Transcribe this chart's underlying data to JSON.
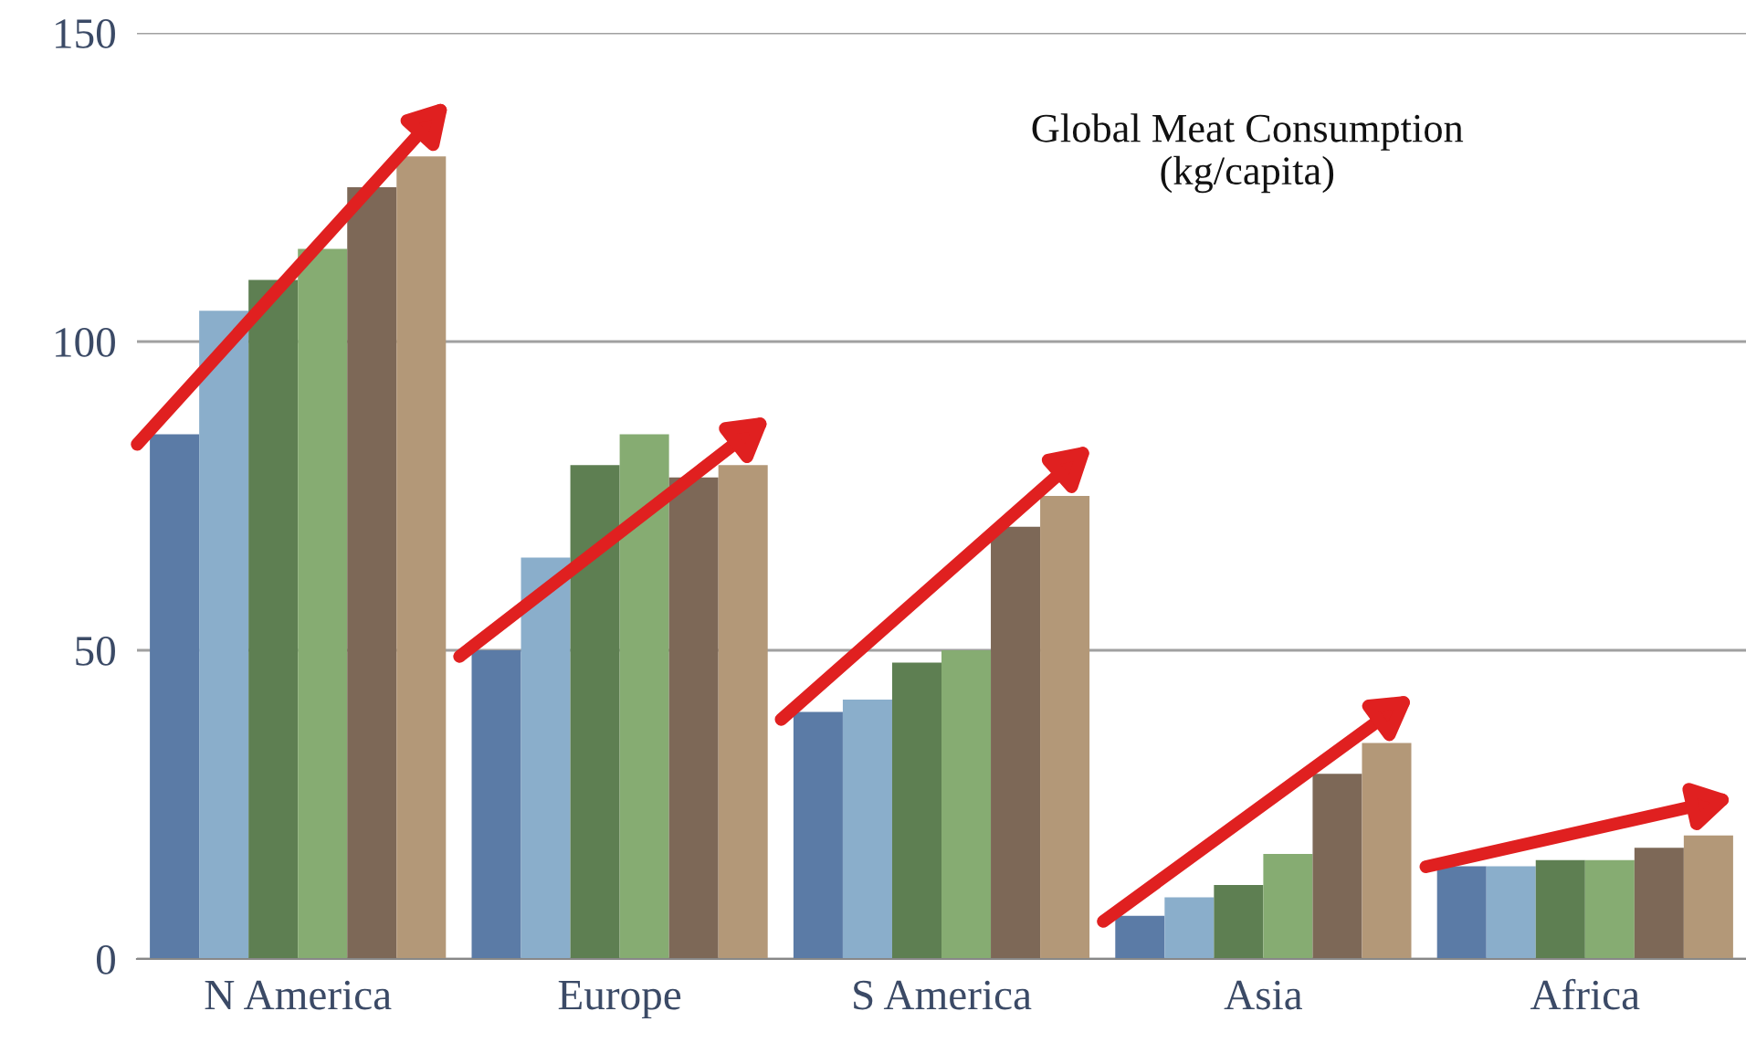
{
  "chart_data": {
    "type": "bar",
    "title": "Global Meat Consumption\n(kg/capita)",
    "categories": [
      "N America",
      "Europe",
      "S America",
      "Asia",
      "Africa"
    ],
    "series": [
      {
        "color": "#5b7ba6",
        "values": [
          85,
          50,
          40,
          7,
          15
        ]
      },
      {
        "color": "#8aaecb",
        "values": [
          105,
          65,
          42,
          10,
          15
        ]
      },
      {
        "color": "#5e7f52",
        "values": [
          110,
          80,
          48,
          12,
          16
        ]
      },
      {
        "color": "#86ac72",
        "values": [
          115,
          85,
          50,
          17,
          16
        ]
      },
      {
        "color": "#7d6857",
        "values": [
          125,
          78,
          70,
          30,
          18
        ]
      },
      {
        "color": "#b39878",
        "values": [
          130,
          80,
          75,
          35,
          20
        ]
      }
    ],
    "ylim": [
      0,
      150
    ],
    "yticks": [
      0,
      50,
      100,
      150
    ],
    "grid": "y",
    "legend": false
  }
}
